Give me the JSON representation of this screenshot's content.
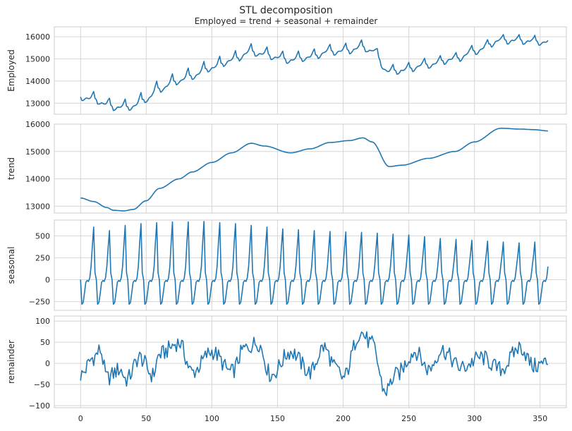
{
  "title": "STL decomposition",
  "subtitle": "Employed = trend + seasonal + remainder",
  "chart_data": {
    "type": "line",
    "title": "STL decomposition",
    "subtitle": "Employed = trend + seasonal + remainder",
    "xlabel": "",
    "xlim": [
      -20,
      370
    ],
    "x_ticks": [
      0,
      50,
      100,
      150,
      200,
      250,
      300,
      350
    ],
    "x_tick_labels": [
      "0",
      "50",
      "100",
      "150",
      "200",
      "250",
      "300",
      "350"
    ],
    "n_points": 357,
    "line_color": "#1f77b4",
    "grid": true,
    "panels": [
      {
        "name": "observed",
        "ylabel": "Employed",
        "ylim": [
          12500,
          16450
        ],
        "y_ticks": [
          13000,
          14000,
          15000,
          16000
        ],
        "y_tick_labels": [
          "13000",
          "14000",
          "15000",
          "16000"
        ],
        "seasonal_amplitude": 1.0,
        "trend_points": [
          [
            0,
            13300
          ],
          [
            25,
            12850
          ],
          [
            33,
            12830
          ],
          [
            50,
            13200
          ],
          [
            75,
            14000
          ],
          [
            100,
            14600
          ],
          [
            130,
            15300
          ],
          [
            160,
            14950
          ],
          [
            190,
            15330
          ],
          [
            215,
            15500
          ],
          [
            235,
            14450
          ],
          [
            265,
            14750
          ],
          [
            285,
            15000
          ],
          [
            320,
            15850
          ],
          [
            357,
            15750
          ]
        ]
      },
      {
        "name": "trend",
        "ylabel": "trend",
        "ylim": [
          12750,
          16000
        ],
        "y_ticks": [
          13000,
          14000,
          15000,
          16000
        ],
        "y_tick_labels": [
          "13000",
          "14000",
          "15000",
          "16000"
        ],
        "trend_points": [
          [
            0,
            13300
          ],
          [
            10,
            13170
          ],
          [
            20,
            12950
          ],
          [
            25,
            12850
          ],
          [
            33,
            12830
          ],
          [
            40,
            12880
          ],
          [
            50,
            13200
          ],
          [
            60,
            13650
          ],
          [
            75,
            14000
          ],
          [
            85,
            14250
          ],
          [
            100,
            14600
          ],
          [
            115,
            14950
          ],
          [
            130,
            15300
          ],
          [
            140,
            15200
          ],
          [
            160,
            14950
          ],
          [
            175,
            15100
          ],
          [
            190,
            15330
          ],
          [
            205,
            15400
          ],
          [
            215,
            15500
          ],
          [
            222,
            15350
          ],
          [
            235,
            14450
          ],
          [
            245,
            14500
          ],
          [
            265,
            14750
          ],
          [
            285,
            15000
          ],
          [
            300,
            15350
          ],
          [
            320,
            15850
          ],
          [
            335,
            15820
          ],
          [
            345,
            15800
          ],
          [
            357,
            15750
          ]
        ]
      },
      {
        "name": "seasonal",
        "ylabel": "seasonal",
        "ylim": [
          -350,
          680
        ],
        "y_ticks": [
          -250,
          0,
          250,
          500
        ],
        "y_tick_labels": [
          "−250",
          "0",
          "250",
          "500"
        ],
        "period": 12,
        "cycle_pattern": [
          0,
          -280,
          -260,
          -150,
          -30,
          -10,
          -20,
          20,
          150,
          380,
          560,
          80
        ],
        "peak_values": [
          600,
          560,
          620,
          640,
          650,
          660,
          660,
          665,
          650,
          640,
          620,
          600,
          580,
          570,
          560,
          550,
          545,
          540,
          530,
          520,
          510,
          490,
          470,
          460,
          450,
          440,
          430,
          420,
          430,
          440
        ]
      },
      {
        "name": "remainder",
        "ylabel": "remainder",
        "ylim": [
          -105,
          112
        ],
        "y_ticks": [
          -100,
          -50,
          0,
          50,
          100
        ],
        "y_tick_labels": [
          "−100",
          "−50",
          "0",
          "50",
          "100"
        ],
        "envelope": [
          [
            0,
            -40
          ],
          [
            10,
            20
          ],
          [
            15,
            45
          ],
          [
            20,
            -50
          ],
          [
            30,
            -20
          ],
          [
            35,
            -55
          ],
          [
            45,
            20
          ],
          [
            55,
            -40
          ],
          [
            60,
            30
          ],
          [
            75,
            70
          ],
          [
            85,
            -30
          ],
          [
            100,
            40
          ],
          [
            115,
            -30
          ],
          [
            125,
            50
          ],
          [
            135,
            70
          ],
          [
            145,
            -40
          ],
          [
            160,
            40
          ],
          [
            175,
            -30
          ],
          [
            185,
            55
          ],
          [
            195,
            -20
          ],
          [
            200,
            -50
          ],
          [
            213,
            105
          ],
          [
            222,
            65
          ],
          [
            232,
            -95
          ],
          [
            240,
            -40
          ],
          [
            255,
            40
          ],
          [
            265,
            -20
          ],
          [
            275,
            45
          ],
          [
            290,
            -15
          ],
          [
            305,
            20
          ],
          [
            320,
            -20
          ],
          [
            335,
            55
          ],
          [
            345,
            -10
          ],
          [
            357,
            5
          ]
        ]
      }
    ]
  }
}
